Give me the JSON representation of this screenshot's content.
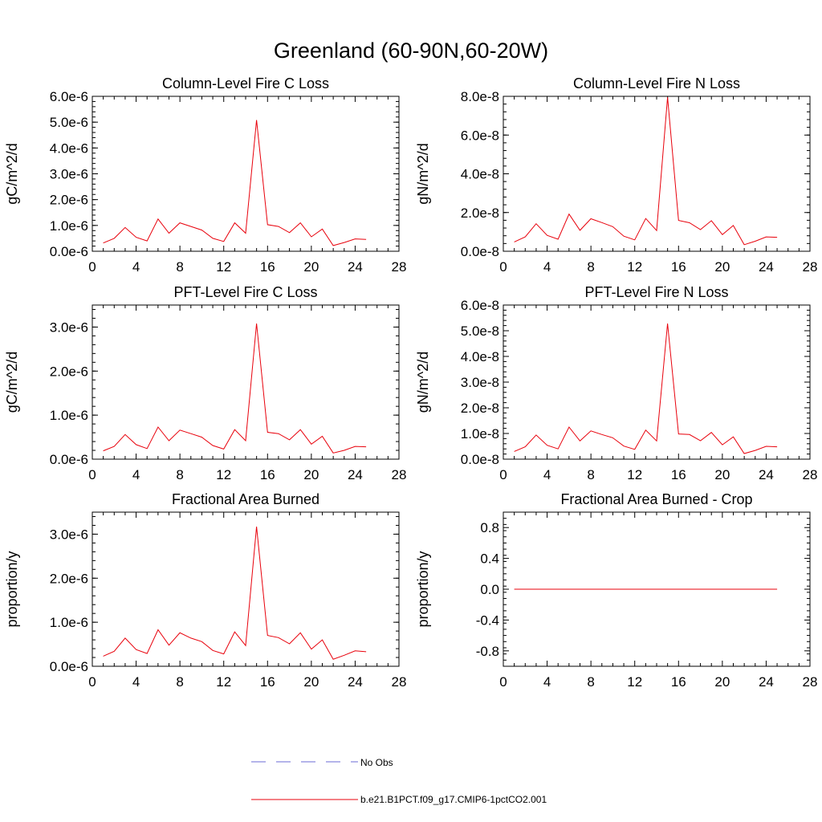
{
  "figure": {
    "title": "Greenland (60-90N,60-20W)"
  },
  "legend": {
    "items": [
      {
        "label": "No Obs",
        "color": "#6b6bd6",
        "dashed": true
      },
      {
        "label": "b.e21.B1PCT.f09_g17.CMIP6-1pctCO2.001",
        "color": "#e8000b",
        "dashed": false
      }
    ]
  },
  "chart_data": [
    {
      "type": "line",
      "title": "Column-Level Fire C Loss",
      "ylabel": "gC/m^2/d",
      "xlim": [
        0,
        28
      ],
      "xticks": [
        "0",
        "4",
        "8",
        "12",
        "16",
        "20",
        "24",
        "28"
      ],
      "ylim": [
        0,
        6e-06
      ],
      "yticks": [
        "0.0e-6",
        "1.0e-6",
        "2.0e-6",
        "3.0e-6",
        "4.0e-6",
        "5.0e-6",
        "6.0e-6"
      ],
      "ytick_values": [
        0,
        1e-06,
        2e-06,
        3e-06,
        4e-06,
        5e-06,
        6e-06
      ],
      "series": [
        {
          "color": "#e8000b",
          "x": [
            1,
            2,
            3,
            4,
            5,
            6,
            7,
            8,
            9,
            10,
            11,
            12,
            13,
            14,
            15,
            16,
            17,
            18,
            19,
            20,
            21,
            22,
            23,
            24,
            25
          ],
          "y": [
            3.2e-07,
            5e-07,
            9.2e-07,
            5.4e-07,
            4e-07,
            1.25e-06,
            7e-07,
            1.1e-06,
            9.6e-07,
            8.2e-07,
            5e-07,
            3.8e-07,
            1.1e-06,
            7e-07,
            5.08e-06,
            1.03e-06,
            9.6e-07,
            7.2e-07,
            1.1e-06,
            5.6e-07,
            8.6e-07,
            2.2e-07,
            3.4e-07,
            4.8e-07,
            4.6e-07
          ]
        }
      ]
    },
    {
      "type": "line",
      "title": "Column-Level Fire N Loss",
      "ylabel": "gN/m^2/d",
      "xlim": [
        0,
        28
      ],
      "xticks": [
        "0",
        "4",
        "8",
        "12",
        "16",
        "20",
        "24",
        "28"
      ],
      "ylim": [
        0,
        8e-08
      ],
      "yticks": [
        "0.0e-8",
        "2.0e-8",
        "4.0e-8",
        "6.0e-8",
        "8.0e-8"
      ],
      "ytick_values": [
        0,
        2e-08,
        4e-08,
        6e-08,
        8e-08
      ],
      "series": [
        {
          "color": "#e8000b",
          "x": [
            1,
            2,
            3,
            4,
            5,
            6,
            7,
            8,
            9,
            10,
            11,
            12,
            13,
            14,
            15,
            16,
            17,
            18,
            19,
            20,
            21,
            22,
            23,
            24,
            25
          ],
          "y": [
            4.8e-09,
            7.4e-09,
            1.42e-08,
            8.2e-09,
            6.2e-09,
            1.92e-08,
            1.08e-08,
            1.68e-08,
            1.48e-08,
            1.27e-08,
            7.8e-09,
            5.9e-09,
            1.69e-08,
            1.07e-08,
            7.95e-08,
            1.59e-08,
            1.47e-08,
            1.12e-08,
            1.58e-08,
            8.6e-09,
            1.33e-08,
            3.4e-09,
            5.2e-09,
            7.4e-09,
            7.2e-09
          ]
        }
      ]
    },
    {
      "type": "line",
      "title": "PFT-Level Fire C Loss",
      "ylabel": "gC/m^2/d",
      "xlim": [
        0,
        28
      ],
      "xticks": [
        "0",
        "4",
        "8",
        "12",
        "16",
        "20",
        "24",
        "28"
      ],
      "ylim": [
        0,
        3.5e-06
      ],
      "yticks": [
        "0.0e-6",
        "1.0e-6",
        "2.0e-6",
        "3.0e-6"
      ],
      "ytick_values": [
        0,
        1e-06,
        2e-06,
        3e-06
      ],
      "series": [
        {
          "color": "#e8000b",
          "x": [
            1,
            2,
            3,
            4,
            5,
            6,
            7,
            8,
            9,
            10,
            11,
            12,
            13,
            14,
            15,
            16,
            17,
            18,
            19,
            20,
            21,
            22,
            23,
            24,
            25
          ],
          "y": [
            1.9e-07,
            2.9e-07,
            5.6e-07,
            3.3e-07,
            2.4e-07,
            7.3e-07,
            4.2e-07,
            6.6e-07,
            5.8e-07,
            5e-07,
            3.1e-07,
            2.3e-07,
            6.7e-07,
            4.2e-07,
            3.08e-06,
            6.1e-07,
            5.8e-07,
            4.4e-07,
            6.7e-07,
            3.4e-07,
            5.2e-07,
            1.4e-07,
            2e-07,
            2.9e-07,
            2.8e-07
          ]
        }
      ]
    },
    {
      "type": "line",
      "title": "PFT-Level Fire N Loss",
      "ylabel": "gN/m^2/d",
      "xlim": [
        0,
        28
      ],
      "xticks": [
        "0",
        "4",
        "8",
        "12",
        "16",
        "20",
        "24",
        "28"
      ],
      "ylim": [
        0,
        6e-08
      ],
      "yticks": [
        "0.0e-8",
        "1.0e-8",
        "2.0e-8",
        "3.0e-8",
        "4.0e-8",
        "5.0e-8",
        "6.0e-8"
      ],
      "ytick_values": [
        0,
        1e-08,
        2e-08,
        3e-08,
        4e-08,
        5e-08,
        6e-08
      ],
      "series": [
        {
          "color": "#e8000b",
          "x": [
            1,
            2,
            3,
            4,
            5,
            6,
            7,
            8,
            9,
            10,
            11,
            12,
            13,
            14,
            15,
            16,
            17,
            18,
            19,
            20,
            21,
            22,
            23,
            24,
            25
          ],
          "y": [
            3e-09,
            4.8e-09,
            9.4e-09,
            5.4e-09,
            4e-09,
            1.25e-08,
            7.1e-09,
            1.1e-08,
            9.6e-09,
            8.3e-09,
            5.1e-09,
            3.8e-09,
            1.13e-08,
            7.1e-09,
            5.28e-08,
            9.8e-09,
            9.6e-09,
            7.2e-09,
            1.04e-08,
            5.6e-09,
            8.7e-09,
            2.2e-09,
            3.4e-09,
            5e-09,
            4.8e-09
          ]
        }
      ]
    },
    {
      "type": "line",
      "title": "Fractional Area Burned",
      "ylabel": "proportion/y",
      "xlim": [
        0,
        28
      ],
      "xticks": [
        "0",
        "4",
        "8",
        "12",
        "16",
        "20",
        "24",
        "28"
      ],
      "ylim": [
        0,
        3.5e-06
      ],
      "yticks": [
        "0.0e-6",
        "1.0e-6",
        "2.0e-6",
        "3.0e-6"
      ],
      "ytick_values": [
        0,
        1e-06,
        2e-06,
        3e-06
      ],
      "series": [
        {
          "color": "#e8000b",
          "x": [
            1,
            2,
            3,
            4,
            5,
            6,
            7,
            8,
            9,
            10,
            11,
            12,
            13,
            14,
            15,
            16,
            17,
            18,
            19,
            20,
            21,
            22,
            23,
            24,
            25
          ],
          "y": [
            2.3e-07,
            3.4e-07,
            6.4e-07,
            3.8e-07,
            2.9e-07,
            8.3e-07,
            4.8e-07,
            7.6e-07,
            6.4e-07,
            5.6e-07,
            3.6e-07,
            2.8e-07,
            7.8e-07,
            4.7e-07,
            3.17e-06,
            7e-07,
            6.5e-07,
            5.1e-07,
            7.6e-07,
            3.9e-07,
            6e-07,
            1.6e-07,
            2.5e-07,
            3.5e-07,
            3.3e-07
          ]
        }
      ]
    },
    {
      "type": "line",
      "title": "Fractional Area Burned - Crop",
      "ylabel": "proportion/y",
      "xlim": [
        0,
        28
      ],
      "xticks": [
        "0",
        "4",
        "8",
        "12",
        "16",
        "20",
        "24",
        "28"
      ],
      "ylim": [
        -1.0,
        1.0
      ],
      "yticks": [
        "-0.8",
        "-0.4",
        "0.0",
        "0.4",
        "0.8"
      ],
      "ytick_values": [
        -0.8,
        -0.4,
        0.0,
        0.4,
        0.8
      ],
      "series": [
        {
          "color": "#e8000b",
          "x": [
            1,
            2,
            3,
            4,
            5,
            6,
            7,
            8,
            9,
            10,
            11,
            12,
            13,
            14,
            15,
            16,
            17,
            18,
            19,
            20,
            21,
            22,
            23,
            24,
            25
          ],
          "y": [
            0,
            0,
            0,
            0,
            0,
            0,
            0,
            0,
            0,
            0,
            0,
            0,
            0,
            0,
            0,
            0,
            0,
            0,
            0,
            0,
            0,
            0,
            0,
            0,
            0
          ]
        }
      ]
    }
  ]
}
